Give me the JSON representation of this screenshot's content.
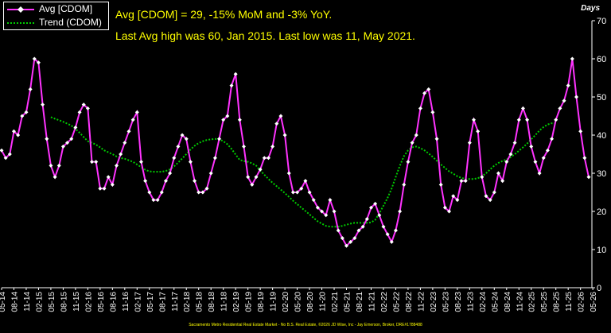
{
  "chart_data": {
    "type": "line",
    "ylabel": "Days",
    "ylim": [
      0,
      70
    ],
    "yticks": [
      0,
      10,
      20,
      30,
      40,
      50,
      60,
      70
    ],
    "grid": false,
    "legend_position": "top-left",
    "x_tick_labels": [
      "05-14",
      "08-14",
      "11-14",
      "02-15",
      "05-15",
      "08-15",
      "11-15",
      "02-16",
      "05-16",
      "08-16",
      "11-16",
      "02-17",
      "05-17",
      "08-17",
      "11-17",
      "02-18",
      "05-18",
      "08-18",
      "11-18",
      "02-19",
      "05-19",
      "08-19",
      "11-19",
      "02-20",
      "05-20",
      "08-20",
      "11-20",
      "02-21",
      "05-21",
      "08-21",
      "11-21",
      "02-22",
      "05-22",
      "08-22",
      "11-22",
      "02-23",
      "05-23",
      "08-23",
      "11-23",
      "02-24",
      "05-24",
      "08-24",
      "11-24",
      "02-25",
      "05-25",
      "08-25",
      "11-25",
      "02-26",
      "05-26"
    ],
    "series": [
      {
        "name": "Avg [CDOM]",
        "color": "#ff33ff",
        "marker": "diamond",
        "values": [
          36,
          34,
          35,
          41,
          40,
          45,
          46,
          52,
          60,
          59,
          48,
          39,
          32,
          29,
          32,
          37,
          38,
          39,
          42,
          46,
          48,
          47,
          33,
          33,
          26,
          26,
          29,
          27,
          32,
          35,
          38,
          41,
          44,
          46,
          33,
          28,
          25,
          23,
          23,
          25,
          28,
          30,
          34,
          37,
          40,
          39,
          33,
          28,
          25,
          25,
          26,
          30,
          34,
          39,
          44,
          45,
          53,
          56,
          44,
          37,
          29,
          27,
          29,
          31,
          34,
          34,
          37,
          43,
          45,
          40,
          30,
          25,
          25,
          26,
          28,
          25,
          23,
          21,
          20,
          19,
          23,
          20,
          15,
          13,
          11,
          12,
          13,
          15,
          16,
          18,
          21,
          22,
          19,
          16,
          14,
          12,
          15,
          20,
          27,
          33,
          38,
          40,
          47,
          51,
          52,
          46,
          39,
          27,
          21,
          20,
          24,
          23,
          28,
          28,
          38,
          44,
          41,
          29,
          24,
          23,
          25,
          30,
          28,
          33,
          35,
          38,
          44,
          47,
          44,
          37,
          33,
          30,
          34,
          36,
          39,
          44,
          47,
          49,
          53,
          60,
          50,
          41,
          34,
          29
        ]
      },
      {
        "name": "Trend (CDOM)",
        "color": "#00cc00",
        "style": "dotted",
        "values": [
          null,
          null,
          null,
          null,
          null,
          null,
          null,
          null,
          null,
          null,
          null,
          null,
          44.7,
          44.3,
          43.9,
          43.5,
          43.0,
          42.5,
          41.6,
          40.6,
          39.5,
          38.4,
          38.0,
          37.5,
          36.8,
          36.0,
          35.5,
          35.0,
          34.4,
          34.0,
          33.8,
          33.4,
          33.0,
          32.3,
          31.6,
          30.9,
          30.5,
          30.4,
          30.4,
          30.4,
          30.6,
          31.0,
          31.8,
          32.8,
          33.9,
          35.0,
          36.2,
          37.2,
          37.9,
          38.4,
          38.7,
          38.9,
          39.0,
          38.9,
          38.4,
          37.6,
          36.4,
          34.9,
          33.5,
          33.2,
          33.0,
          32.6,
          32.0,
          30.7,
          29.6,
          28.5,
          27.5,
          26.6,
          25.7,
          24.8,
          23.8,
          22.8,
          21.9,
          21.0,
          20.1,
          19.2,
          18.3,
          17.4,
          16.8,
          16.2,
          16.0,
          16.0,
          16.0,
          16.2,
          16.5,
          16.8,
          17.0,
          17.0,
          17.0,
          17.0,
          17.1,
          17.8,
          19.5,
          21.5,
          23.5,
          26.0,
          29.0,
          32.0,
          34.5,
          36.0,
          36.8,
          37.0,
          36.6,
          36.0,
          35.2,
          34.3,
          33.3,
          32.3,
          31.4,
          30.5,
          29.9,
          29.2,
          28.8,
          28.5,
          28.5,
          28.5,
          28.7,
          29.2,
          30.0,
          31.0,
          32.0,
          32.7,
          33.2,
          33.6,
          34.2,
          35.0,
          35.9,
          36.8,
          37.8,
          38.9,
          40.0,
          41.2,
          42.1,
          42.8,
          43.1,
          43.1
        ]
      }
    ]
  },
  "legend": [
    {
      "label": "Avg [CDOM]"
    },
    {
      "label": "Trend (CDOM)"
    }
  ],
  "annotations": {
    "line1": "Avg [CDOM] = 29, -15% MoM and -3% YoY.",
    "line2": "Last Avg high was 60, Jan 2015. Last low was 11, May 2021."
  },
  "units_label": "Days",
  "footer": "Sacramento Metro Residential Real Estate Market - No B.S. Real Estate, ©2026 JD Wise, Inc - Jay Emerson, Broker, DRE#1788488"
}
